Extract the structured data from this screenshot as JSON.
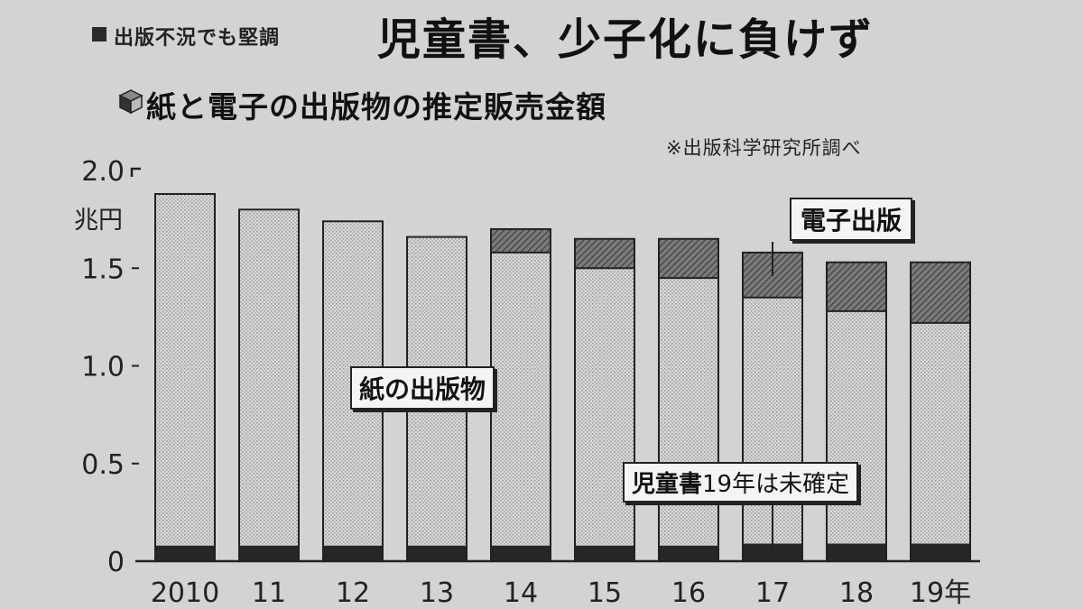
{
  "header": {
    "kicker": "出版不況でも堅調",
    "headline": "児童書、少子化に負けず"
  },
  "chart_data": {
    "type": "bar",
    "stacked": true,
    "title": "紙と電子の出版物の推定販売金額",
    "source": "※出版科学研究所調べ",
    "y_unit": "兆円",
    "ylim": [
      0,
      2.0
    ],
    "y_ticks": [
      "0",
      "0.5",
      "1.0",
      "1.5",
      "2.0"
    ],
    "y_tick_values": [
      0,
      0.5,
      1.0,
      1.5,
      2.0
    ],
    "categories": [
      "2010",
      "11",
      "12",
      "13",
      "14",
      "15",
      "16",
      "17",
      "18",
      "19年"
    ],
    "series": [
      {
        "name": "児童書",
        "color": "#262626",
        "values": [
          0.08,
          0.08,
          0.08,
          0.08,
          0.08,
          0.08,
          0.08,
          0.09,
          0.09,
          0.09
        ]
      },
      {
        "name": "紙の出版物",
        "color": "#cfcfcf",
        "values": [
          1.8,
          1.72,
          1.66,
          1.58,
          1.5,
          1.42,
          1.37,
          1.26,
          1.19,
          1.13
        ]
      },
      {
        "name": "電子出版",
        "color": "#6e6e6e",
        "values": [
          0,
          0,
          0,
          0,
          0.12,
          0.15,
          0.2,
          0.23,
          0.25,
          0.31
        ]
      }
    ],
    "annotations": {
      "digital": "電子出版",
      "paper": "紙の出版物",
      "kids_bold": "児童書",
      "kids_rest": "19年は未確定"
    },
    "grid": false
  }
}
